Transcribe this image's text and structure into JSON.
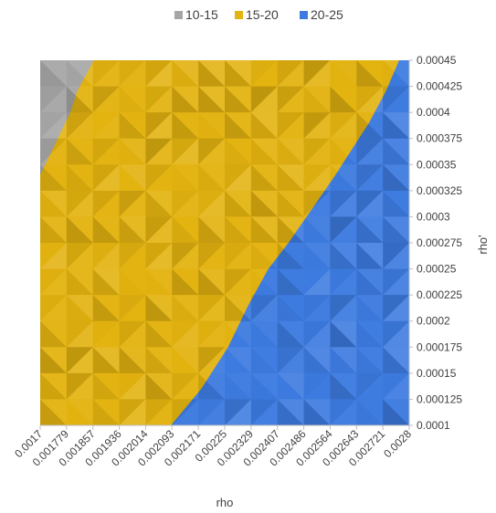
{
  "chart_data": {
    "type": "heatmap",
    "title": "",
    "xlabel": "rho",
    "ylabel": "rho'",
    "x_ticks": [
      "0.0017",
      "0.001779",
      "0.001857",
      "0.001936",
      "0.002014",
      "0.002093",
      "0.002171",
      "0.00225",
      "0.002329",
      "0.002407",
      "0.002486",
      "0.002564",
      "0.002643",
      "0.002721",
      "0.0028"
    ],
    "y_ticks": [
      "0.0001",
      "0.000125",
      "0.00015",
      "0.000175",
      "0.0002",
      "0.000225",
      "0.00025",
      "0.000275",
      "0.0003",
      "0.000325",
      "0.00035",
      "0.000375",
      "0.0004",
      "0.000425",
      "0.00045"
    ],
    "xlim": [
      0.0017,
      0.0028
    ],
    "ylim": [
      0.0001,
      0.00045
    ],
    "legend_position": "top",
    "series": [
      {
        "name": "10-15",
        "color": "#A5A5A5"
      },
      {
        "name": "15-20",
        "color": "#E3B310"
      },
      {
        "name": "20-25",
        "color": "#3D7BE0"
      }
    ],
    "band_boundaries": {
      "gray_to_yellow": {
        "rho_prime": [
          0.00034,
          0.00036,
          0.00038,
          0.0004,
          0.00042,
          0.00045
        ],
        "rho": [
          0.0017,
          0.00173,
          0.00176,
          0.00179,
          0.00181,
          0.00186
        ]
      },
      "yellow_to_blue": {
        "rho": [
          0.00209,
          0.00218,
          0.00226,
          0.00232,
          0.00238,
          0.00244,
          0.00252,
          0.00258,
          0.00263,
          0.00268,
          0.00273,
          0.00277,
          0.0028
        ],
        "rho_prime": [
          0.0001,
          0.000135,
          0.000175,
          0.000215,
          0.00025,
          0.000275,
          0.000312,
          0.00034,
          0.000365,
          0.00039,
          0.00042,
          0.00045,
          0.00045
        ]
      }
    }
  }
}
